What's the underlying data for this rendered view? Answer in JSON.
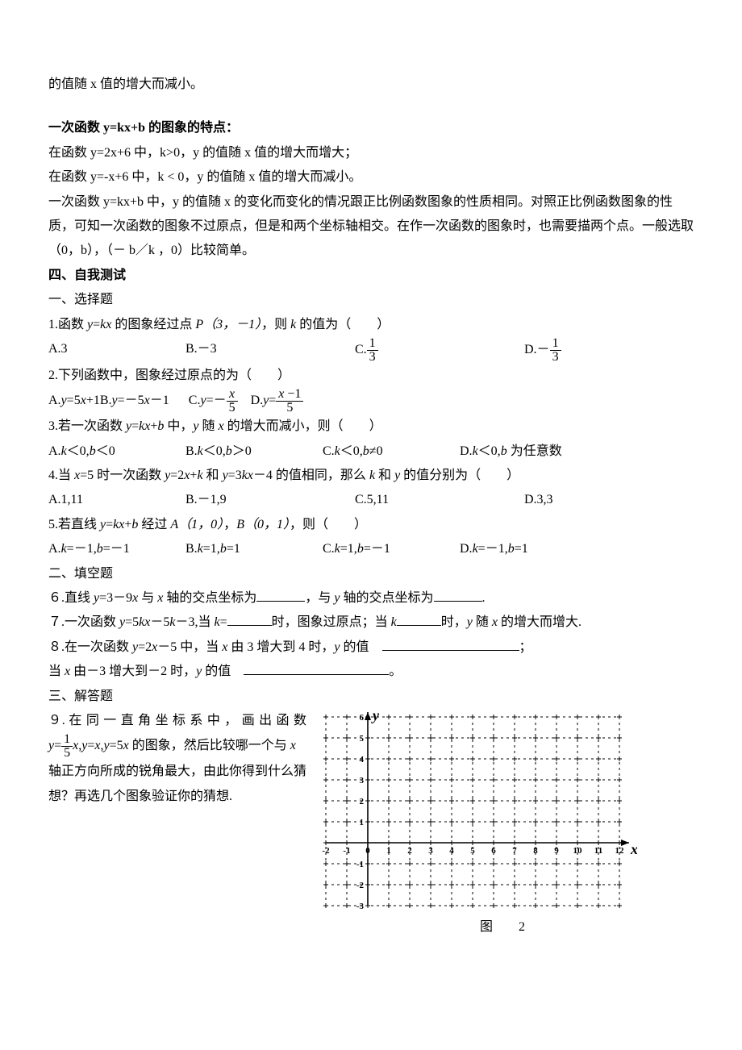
{
  "intro_tail": "的值随 x 值的增大而减小。",
  "section1": {
    "title": "一次函数 y=kx+b 的图象的特点：",
    "p1": "在函数 y=2x+6 中，k>0，y 的值随 x 值的增大而增大；",
    "p2": "在函数 y=-x+6 中，k < 0，y 的值随 x 值的增大而减小。",
    "p3": "一次函数 y=kx+b 中，y 的值随 x 的变化而变化的情况跟正比例函数图象的性质相同。对照正比例函数图象的性质，可知一次函数的图象不过原点，但是和两个坐标轴相交。在作一次函数的图象时，也需要描两个点。一般选取（0，b），（－ b／k ，0）比较简单。"
  },
  "section2_title": "四、自我测试",
  "mc_title": "一、选择题",
  "q1": {
    "stem_pre": "1.函数 ",
    "stem_mid": " 的图象经过点 ",
    "point": "P（3，－1）",
    "stem_post": "，则 ",
    "tail": " 的值为（　　）",
    "A": "A.3",
    "B": "B.－3",
    "C_pre": "C.",
    "D_pre": "D.－"
  },
  "q2": {
    "stem": "2.下列函数中，图象经过原点的为（　　）",
    "A_pre": "A.",
    "A_mid": "=5",
    "A_post": "+1",
    "Bsep": "B.",
    "B_mid": "=－5",
    "B_post": "－1",
    "C_pre": "C.",
    "C_eq": "=－",
    "D_pre": "D.",
    "D_eq": "="
  },
  "q3": {
    "stem_pre": "3.若一次函数 ",
    "stem_mid": " 中，",
    "stem_mid2": " 随 ",
    "stem_post": " 的增大而减小，则（　　）",
    "A": "＜0,",
    "A2": "＜0",
    "B": "＜0,",
    "B2": "＞0",
    "C": "＜0,",
    "C2": "≠0",
    "D": "＜0,",
    "D2": " 为任意数"
  },
  "q4": {
    "stem_pre": "4.当 ",
    "x5": "=5 时一次函数 ",
    "and": " 和 ",
    "valeq": " 的值相同，那么 ",
    "and2": " 和 ",
    "tail": " 的值分别为（　　）",
    "A": "A.1,11",
    "B": "B.－1,9",
    "C": "C.5,11",
    "D": "D.3,3"
  },
  "q5": {
    "stem_pre": "5.若直线 ",
    "mid": " 经过 ",
    "ptA": "A（1，0）",
    "sep": "，",
    "ptB": "B（0，1）",
    "tail": "，则（　　）",
    "A": "=－1,",
    "A2": "=－1",
    "B": "=1,",
    "B2": "=1",
    "C": "=1,",
    "C2": "=－1",
    "D": "=－1,",
    "D2": "=1"
  },
  "fill_title": "二、填空题",
  "q6": {
    "pre": "６.直线 ",
    "mid": " 与 ",
    "ax1": " 轴的交点坐标为",
    "mid2": "，与 ",
    "ax2": " 轴的交点坐标为",
    "end": "."
  },
  "q7": {
    "pre": "７.一次函数 ",
    "mid": "－3,当 ",
    "eq": "=",
    "m2": "时，图象过原点；当 ",
    "m3": "时，",
    "m4": " 随 ",
    "m5": " 的增大而增大."
  },
  "q8": {
    "pre": "８.在一次函数 ",
    "mid": " 中，当 ",
    "r1": " 由 3 增大到 4 时，",
    "r1b": " 的值",
    "semic": "；",
    "line2_pre": "当 ",
    "r2": " 由－3 增大到－2 时，",
    "r2b": " 的值",
    "period": "。"
  },
  "ans_title": "三、解答题",
  "q9": {
    "l1": "９. 在 同 一 直 角 坐 标 系 中 ， 画 出 函 数",
    "l2_pre": "",
    "l2_mid": " 的图象，然后比较哪一个与 ",
    "l3": "轴正方向所成的锐角最大，由此你得到什么猜想？再选几个图象验证你的猜想."
  },
  "grid": {
    "xmin": -2,
    "xmax": 12,
    "ymin": -3,
    "ymax": 6,
    "cell": 26,
    "axis_color": "#000000",
    "grid_color": "#000000",
    "dash": "3,4",
    "xticks": [
      -2,
      -1,
      0,
      1,
      2,
      3,
      4,
      5,
      6,
      7,
      8,
      9,
      10,
      11,
      12
    ],
    "yticks": [
      -3,
      -2,
      -1,
      1,
      2,
      3,
      4,
      5,
      6
    ],
    "xlabel": "x",
    "ylabel": "y",
    "tick_fontsize": 11,
    "label_fontsize": 18
  },
  "fig_caption": "图　2"
}
